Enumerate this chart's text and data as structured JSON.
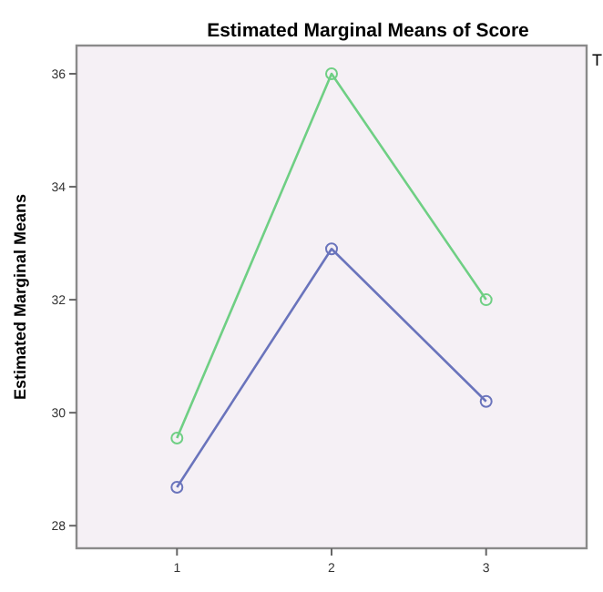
{
  "chart_data": {
    "type": "line",
    "title": "Estimated Marginal Means of Score",
    "ylabel": "Estimated Marginal Means",
    "categories": [
      "1",
      "2",
      "3"
    ],
    "series": [
      {
        "color": "#6fcf84",
        "values": [
          29.55,
          36.0,
          32.0
        ]
      },
      {
        "color": "#6a74bc",
        "values": [
          28.68,
          32.9,
          30.2
        ]
      }
    ],
    "ylim": [
      27.6,
      36.5
    ],
    "yticks": [
      28,
      30,
      32,
      34,
      36
    ],
    "marker": "circle",
    "grid": false,
    "annotations": [
      "T"
    ]
  }
}
